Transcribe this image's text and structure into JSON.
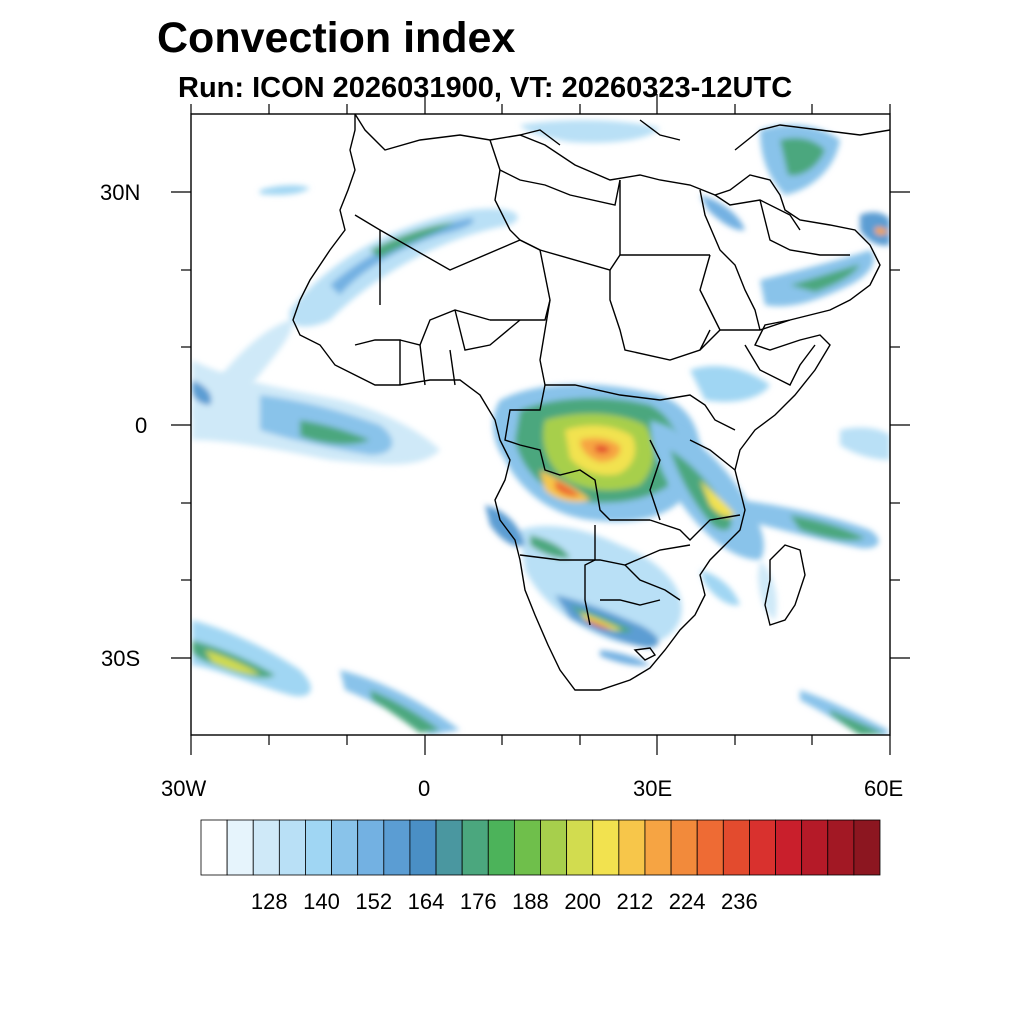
{
  "title": "Convection index",
  "subtitle": "Run: ICON 2026031900,  VT: 20260323-12UTC",
  "axes": {
    "lat_ticks": [
      {
        "label": "30N",
        "value": 30
      },
      {
        "label": "0",
        "value": 0
      },
      {
        "label": "30S",
        "value": -30
      }
    ],
    "lon_ticks": [
      {
        "label": "30W",
        "value": -30
      },
      {
        "label": "0",
        "value": 0
      },
      {
        "label": "30E",
        "value": 30
      },
      {
        "label": "60E",
        "value": 60
      }
    ],
    "lon_range": [
      -30,
      60
    ],
    "lat_range": [
      -40,
      40
    ]
  },
  "colorbar": {
    "labels": [
      "128",
      "140",
      "152",
      "164",
      "176",
      "188",
      "200",
      "212",
      "224",
      "236"
    ],
    "colors": [
      "#ffffff",
      "#e6f4fc",
      "#cfe9f8",
      "#b9e0f6",
      "#a0d6f3",
      "#89c3ea",
      "#73b1e2",
      "#5b9dd3",
      "#4a8fc5",
      "#4a97a0",
      "#4ba77e",
      "#4cb35a",
      "#6fbf4b",
      "#a7cf4c",
      "#d2dc4f",
      "#f2e24f",
      "#f7c64a",
      "#f6a443",
      "#f28a3b",
      "#ee6b34",
      "#e34b2e",
      "#d9312e",
      "#c91f2c",
      "#b51a28",
      "#a21824",
      "#8c1620"
    ]
  },
  "regions": {
    "cap-verde-band": "convection band",
    "equatorial-atlantic": "convection band",
    "congo-basin": "convection core",
    "east-africa": "convection band",
    "southern-africa": "convection core",
    "south-atlantic-front": "convection band",
    "arabian-peninsula": "convection band",
    "mozambique-channel": "convection band"
  }
}
